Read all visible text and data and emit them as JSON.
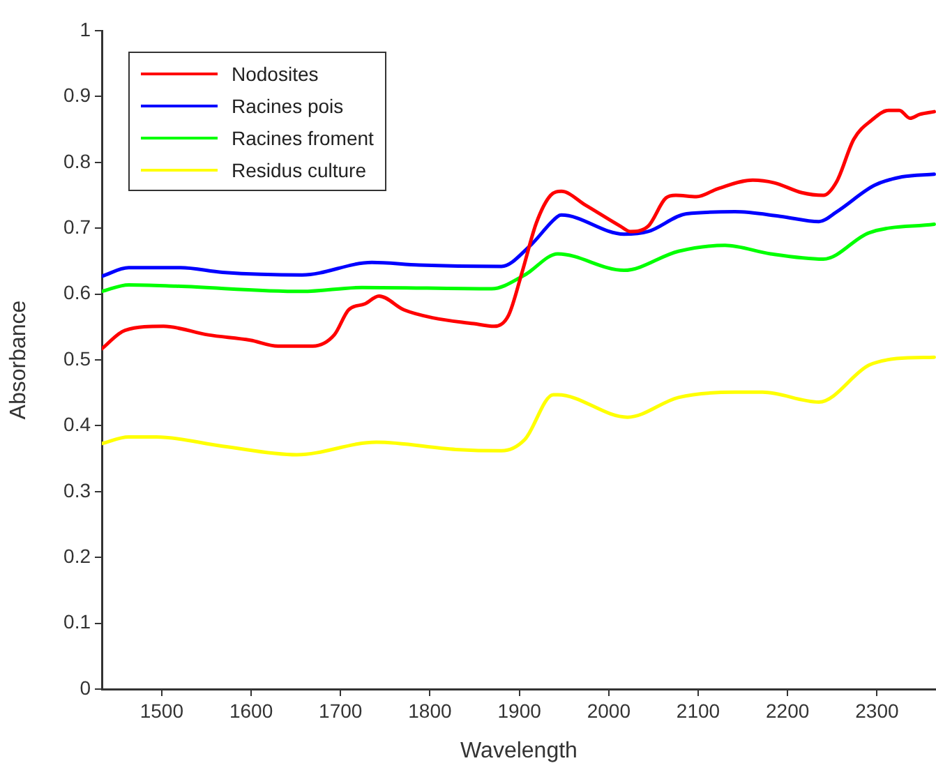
{
  "chart_data": {
    "type": "line",
    "xlabel": "Wavelength",
    "ylabel": "Absorbance",
    "xlim": [
      1433,
      2366
    ],
    "xticks": [
      1500,
      1600,
      1700,
      1800,
      1900,
      2000,
      2100,
      2200,
      2300
    ],
    "ylim": [
      0,
      1
    ],
    "yticks": [
      0,
      0.1,
      0.2,
      0.3,
      0.4,
      0.5,
      0.6,
      0.7,
      0.8,
      0.9,
      1
    ],
    "grid": false,
    "legend": "top left",
    "marker": "none",
    "line_style": "solid",
    "series": [
      {
        "name": "Nodosites",
        "color": "#ff0000",
        "x": [
          1433,
          1459,
          1502,
          1552,
          1599,
          1630,
          1669,
          1693,
          1709,
          1727,
          1743,
          1771,
          1803,
          1849,
          1872,
          1888,
          1903,
          1919,
          1935,
          1947,
          1974,
          2013,
          2024,
          2044,
          2064,
          2075,
          2098,
          2122,
          2161,
          2185,
          2216,
          2240,
          2255,
          2274,
          2294,
          2313,
          2325,
          2337,
          2348,
          2364
        ],
        "values": [
          0.517,
          0.545,
          0.551,
          0.538,
          0.53,
          0.521,
          0.521,
          0.538,
          0.576,
          0.585,
          0.597,
          0.576,
          0.564,
          0.555,
          0.551,
          0.568,
          0.633,
          0.708,
          0.75,
          0.756,
          0.735,
          0.703,
          0.695,
          0.703,
          0.746,
          0.75,
          0.748,
          0.76,
          0.773,
          0.769,
          0.754,
          0.75,
          0.771,
          0.835,
          0.864,
          0.879,
          0.879,
          0.867,
          0.873,
          0.877
        ]
      },
      {
        "name": "Racines pois",
        "color": "#0000ff",
        "x": [
          1433,
          1463,
          1521,
          1568,
          1657,
          1735,
          1788,
          1880,
          1911,
          1943,
          1947,
          2017,
          2044,
          2087,
          2141,
          2192,
          2235,
          2255,
          2297,
          2328,
          2364
        ],
        "values": [
          0.627,
          0.64,
          0.64,
          0.633,
          0.629,
          0.648,
          0.644,
          0.642,
          0.672,
          0.718,
          0.72,
          0.691,
          0.695,
          0.722,
          0.725,
          0.718,
          0.71,
          0.725,
          0.765,
          0.778,
          0.782
        ]
      },
      {
        "name": "Racines froment",
        "color": "#00ff00",
        "x": [
          1433,
          1463,
          1516,
          1657,
          1724,
          1869,
          1906,
          1943,
          2017,
          2078,
          2130,
          2181,
          2240,
          2291,
          2364
        ],
        "values": [
          0.604,
          0.614,
          0.612,
          0.604,
          0.61,
          0.608,
          0.629,
          0.661,
          0.636,
          0.665,
          0.674,
          0.661,
          0.653,
          0.693,
          0.706
        ]
      },
      {
        "name": "Residus culture",
        "color": "#ffff00",
        "x": [
          1433,
          1463,
          1494,
          1568,
          1651,
          1740,
          1829,
          1880,
          1906,
          1938,
          1943,
          2021,
          2078,
          2141,
          2172,
          2235,
          2291,
          2322,
          2364
        ],
        "values": [
          0.373,
          0.383,
          0.383,
          0.369,
          0.356,
          0.375,
          0.364,
          0.362,
          0.379,
          0.447,
          0.447,
          0.413,
          0.443,
          0.451,
          0.451,
          0.436,
          0.492,
          0.502,
          0.504
        ]
      }
    ]
  }
}
